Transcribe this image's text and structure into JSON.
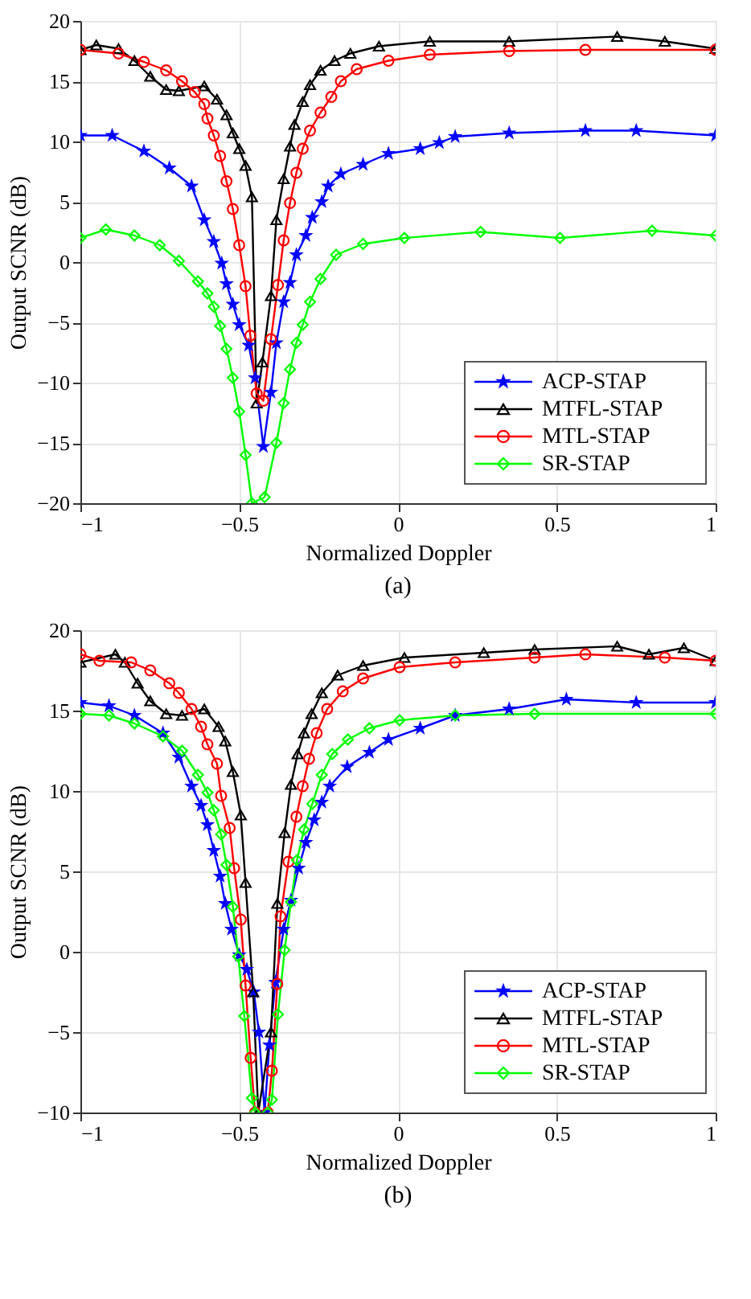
{
  "chart_data": [
    {
      "type": "line",
      "xlabel": "Normalized Doppler",
      "ylabel": "Output SCNR (dB)",
      "annotations": [
        "(a)"
      ],
      "xlim": [
        -1,
        1
      ],
      "ylim": [
        -20,
        20
      ],
      "xticks": [
        -1,
        -0.5,
        0,
        0.5,
        1
      ],
      "yticks": [
        -20,
        -15,
        -10,
        -5,
        0,
        5,
        10,
        15,
        20
      ],
      "grid": true,
      "legend": "bottom right",
      "series": [
        {
          "name": "ACP-STAP",
          "color": "#0000ff",
          "marker": "star",
          "x": [
            -1,
            -0.9,
            -0.8,
            -0.72,
            -0.65,
            -0.61,
            -0.58,
            -0.555,
            -0.54,
            -0.52,
            -0.5,
            -0.47,
            -0.45,
            -0.424,
            -0.4,
            -0.383,
            -0.36,
            -0.34,
            -0.32,
            -0.29,
            -0.27,
            -0.24,
            -0.22,
            -0.18,
            -0.11,
            -0.03,
            0.07,
            0.13,
            0.18,
            0.35,
            0.59,
            0.75,
            1
          ],
          "values": [
            10.5,
            10.5,
            9.2,
            7.8,
            6.3,
            3.5,
            1.7,
            -0.1,
            -1.8,
            -3.5,
            -5.2,
            -6.9,
            -9.6,
            -15.3,
            -10.8,
            -6.7,
            -3.3,
            -1.7,
            0.6,
            2.2,
            3.7,
            5.0,
            6.3,
            7.3,
            8.1,
            9.0,
            9.4,
            9.9,
            10.4,
            10.7,
            10.9,
            10.9,
            10.5
          ]
        },
        {
          "name": "MTFL-STAP",
          "color": "#000000",
          "marker": "triangle",
          "x": [
            -1,
            -0.95,
            -0.88,
            -0.83,
            -0.78,
            -0.73,
            -0.69,
            -0.61,
            -0.57,
            -0.54,
            -0.52,
            -0.5,
            -0.48,
            -0.46,
            -0.445,
            -0.427,
            -0.4,
            -0.383,
            -0.36,
            -0.34,
            -0.326,
            -0.3,
            -0.277,
            -0.244,
            -0.2,
            -0.15,
            -0.06,
            0.1,
            0.35,
            0.69,
            0.84,
            1
          ],
          "values": [
            17.6,
            18.0,
            17.7,
            16.7,
            15.4,
            14.3,
            14.2,
            14.6,
            13.5,
            12.2,
            10.7,
            9.4,
            8.0,
            5.4,
            -11.7,
            -8.3,
            -2.8,
            3.5,
            6.9,
            9.6,
            11.4,
            13.3,
            14.7,
            15.9,
            16.7,
            17.3,
            17.9,
            18.3,
            18.3,
            18.7,
            18.3,
            17.7
          ]
        },
        {
          "name": "MTL-STAP",
          "color": "#ff0000",
          "marker": "circle",
          "x": [
            -1,
            -0.88,
            -0.8,
            -0.73,
            -0.68,
            -0.64,
            -0.61,
            -0.6,
            -0.58,
            -0.56,
            -0.54,
            -0.52,
            -0.5,
            -0.48,
            -0.465,
            -0.445,
            -0.424,
            -0.4,
            -0.378,
            -0.36,
            -0.34,
            -0.32,
            -0.3,
            -0.277,
            -0.244,
            -0.21,
            -0.18,
            -0.13,
            -0.03,
            0.1,
            0.35,
            0.59,
            1
          ],
          "values": [
            17.6,
            17.3,
            16.6,
            15.9,
            15.0,
            14.1,
            13.1,
            11.9,
            10.5,
            8.8,
            6.7,
            4.4,
            1.4,
            -2.0,
            -6.1,
            -10.9,
            -11.5,
            -6.4,
            -1.9,
            1.8,
            4.9,
            7.4,
            9.4,
            10.9,
            12.4,
            13.7,
            15.0,
            16.0,
            16.7,
            17.2,
            17.5,
            17.6,
            17.6
          ]
        },
        {
          "name": "SR-STAP",
          "color": "#00ff00",
          "marker": "diamond",
          "x": [
            -1,
            -0.92,
            -0.83,
            -0.75,
            -0.69,
            -0.63,
            -0.6,
            -0.58,
            -0.56,
            -0.54,
            -0.52,
            -0.5,
            -0.48,
            -0.46,
            -0.42,
            -0.383,
            -0.36,
            -0.34,
            -0.32,
            -0.3,
            -0.277,
            -0.244,
            -0.195,
            -0.11,
            0.02,
            0.26,
            0.51,
            0.8,
            1
          ],
          "values": [
            2.0,
            2.7,
            2.2,
            1.4,
            0.1,
            -1.6,
            -2.6,
            -3.7,
            -5.3,
            -7.2,
            -9.6,
            -12.4,
            -16.0,
            -20,
            -19.5,
            -15.0,
            -11.7,
            -8.9,
            -6.7,
            -5.2,
            -3.3,
            -1.4,
            0.6,
            1.5,
            2.0,
            2.5,
            2.0,
            2.6,
            2.2
          ]
        }
      ]
    },
    {
      "type": "line",
      "xlabel": "Normalized Doppler",
      "ylabel": "Output SCNR (dB)",
      "annotations": [
        "(b)"
      ],
      "xlim": [
        -1,
        1
      ],
      "ylim": [
        -10,
        20
      ],
      "xticks": [
        -1,
        -0.5,
        0,
        0.5,
        1
      ],
      "yticks": [
        -10,
        -5,
        0,
        5,
        10,
        15,
        20
      ],
      "grid": true,
      "legend": "bottom right",
      "series": [
        {
          "name": "ACP-STAP",
          "color": "#0000ff",
          "marker": "star",
          "x": [
            -1,
            -0.91,
            -0.83,
            -0.74,
            -0.69,
            -0.65,
            -0.62,
            -0.6,
            -0.58,
            -0.56,
            -0.544,
            -0.524,
            -0.5,
            -0.476,
            -0.454,
            -0.438,
            -0.42,
            -0.405,
            -0.386,
            -0.36,
            -0.337,
            -0.313,
            -0.29,
            -0.264,
            -0.24,
            -0.215,
            -0.16,
            -0.09,
            -0.03,
            0.07,
            0.18,
            0.35,
            0.53,
            0.75,
            1
          ],
          "values": [
            15.5,
            15.3,
            14.7,
            13.6,
            12.1,
            10.3,
            9.1,
            7.9,
            6.3,
            4.7,
            3.0,
            1.4,
            -0.2,
            -1.1,
            -2.5,
            -5.0,
            -10,
            -5.8,
            -1.9,
            1.4,
            3.2,
            5.2,
            6.8,
            8.2,
            9.3,
            10.3,
            11.5,
            12.4,
            13.2,
            13.9,
            14.7,
            15.1,
            15.7,
            15.5,
            15.5
          ]
        },
        {
          "name": "MTFL-STAP",
          "color": "#000000",
          "marker": "triangle",
          "x": [
            -1,
            -0.89,
            -0.86,
            -0.82,
            -0.78,
            -0.73,
            -0.68,
            -0.61,
            -0.565,
            -0.544,
            -0.52,
            -0.495,
            -0.48,
            -0.456,
            -0.44,
            -0.4,
            -0.38,
            -0.357,
            -0.337,
            -0.316,
            -0.296,
            -0.272,
            -0.24,
            -0.19,
            -0.11,
            0.02,
            0.27,
            0.43,
            0.69,
            0.79,
            0.9,
            1
          ],
          "values": [
            18.0,
            18.5,
            18.0,
            16.7,
            15.6,
            14.8,
            14.7,
            15.1,
            14.0,
            13.1,
            11.2,
            8.5,
            4.3,
            -2.5,
            -10,
            -5.0,
            3.0,
            7.4,
            10.4,
            12.3,
            13.6,
            14.8,
            16.1,
            17.2,
            17.8,
            18.3,
            18.6,
            18.8,
            19.0,
            18.5,
            18.9,
            18.1
          ]
        },
        {
          "name": "MTL-STAP",
          "color": "#ff0000",
          "marker": "circle",
          "x": [
            -1,
            -0.94,
            -0.84,
            -0.78,
            -0.72,
            -0.69,
            -0.65,
            -0.62,
            -0.6,
            -0.57,
            -0.557,
            -0.53,
            -0.516,
            -0.495,
            -0.48,
            -0.464,
            -0.45,
            -0.41,
            -0.397,
            -0.38,
            -0.37,
            -0.345,
            -0.32,
            -0.3,
            -0.28,
            -0.256,
            -0.223,
            -0.174,
            -0.11,
            0.005,
            0.18,
            0.43,
            0.59,
            0.84,
            1
          ],
          "values": [
            18.5,
            18.1,
            18.0,
            17.5,
            16.7,
            16.1,
            15.1,
            14.0,
            12.9,
            11.7,
            9.7,
            7.7,
            5.2,
            2.0,
            -2.1,
            -6.6,
            -10,
            -10,
            -7.4,
            -2.0,
            2.2,
            5.6,
            8.4,
            10.3,
            12.0,
            13.6,
            15.1,
            16.2,
            17.0,
            17.7,
            18.0,
            18.3,
            18.5,
            18.3,
            18.1
          ]
        },
        {
          "name": "SR-STAP",
          "color": "#00ff00",
          "marker": "diamond",
          "x": [
            -1,
            -0.91,
            -0.83,
            -0.74,
            -0.68,
            -0.63,
            -0.6,
            -0.58,
            -0.557,
            -0.54,
            -0.52,
            -0.503,
            -0.484,
            -0.46,
            -0.45,
            -0.41,
            -0.397,
            -0.378,
            -0.357,
            -0.337,
            -0.318,
            -0.296,
            -0.27,
            -0.24,
            -0.207,
            -0.158,
            -0.09,
            0.005,
            0.18,
            0.43,
            1
          ],
          "values": [
            14.8,
            14.7,
            14.2,
            13.4,
            12.5,
            11.0,
            9.9,
            8.8,
            7.3,
            5.4,
            2.8,
            -0.3,
            -4.0,
            -9.1,
            -10,
            -10,
            -9.2,
            -3.9,
            0.1,
            3.1,
            5.7,
            7.6,
            9.2,
            11.0,
            12.3,
            13.2,
            13.9,
            14.4,
            14.7,
            14.8,
            14.8
          ]
        }
      ]
    }
  ]
}
